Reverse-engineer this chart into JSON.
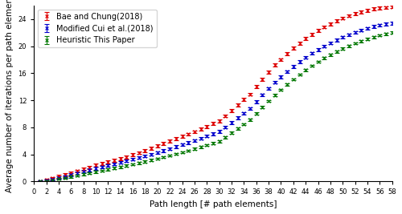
{
  "title": "",
  "xlabel": "Path length [# path elements]",
  "ylabel": "Average number of iterations per path element",
  "xlim": [
    0,
    58
  ],
  "ylim": [
    0,
    26
  ],
  "xticks": [
    0,
    2,
    4,
    6,
    8,
    10,
    12,
    14,
    16,
    18,
    20,
    22,
    24,
    26,
    28,
    30,
    32,
    34,
    36,
    38,
    40,
    42,
    44,
    46,
    48,
    50,
    52,
    54,
    56,
    58
  ],
  "yticks": [
    0,
    4,
    8,
    12,
    16,
    20,
    24
  ],
  "series": [
    {
      "label": "Bae and Chung(2018)",
      "color": "#dd0000",
      "x": [
        1,
        2,
        3,
        4,
        5,
        6,
        7,
        8,
        9,
        10,
        11,
        12,
        13,
        14,
        15,
        16,
        17,
        18,
        19,
        20,
        21,
        22,
        23,
        24,
        25,
        26,
        27,
        28,
        29,
        30,
        31,
        32,
        33,
        34,
        35,
        36,
        37,
        38,
        39,
        40,
        41,
        42,
        43,
        44,
        45,
        46,
        47,
        48,
        49,
        50,
        51,
        52,
        53,
        54,
        55,
        56,
        57,
        58
      ],
      "y": [
        0.05,
        0.25,
        0.5,
        0.75,
        1.0,
        1.25,
        1.55,
        1.85,
        2.1,
        2.4,
        2.65,
        2.9,
        3.15,
        3.4,
        3.65,
        3.95,
        4.25,
        4.55,
        4.9,
        5.25,
        5.6,
        5.95,
        6.3,
        6.65,
        7.0,
        7.35,
        7.75,
        8.15,
        8.55,
        8.95,
        9.7,
        10.5,
        11.3,
        12.1,
        12.9,
        14.0,
        15.1,
        16.2,
        17.2,
        18.0,
        18.9,
        19.7,
        20.4,
        21.1,
        21.7,
        22.3,
        22.85,
        23.3,
        23.75,
        24.15,
        24.5,
        24.8,
        25.05,
        25.3,
        25.5,
        25.6,
        25.7,
        25.8
      ],
      "yerr": [
        0.1,
        0.15,
        0.18,
        0.2,
        0.22,
        0.22,
        0.22,
        0.22,
        0.22,
        0.22,
        0.22,
        0.22,
        0.22,
        0.22,
        0.22,
        0.22,
        0.22,
        0.22,
        0.22,
        0.22,
        0.22,
        0.22,
        0.22,
        0.22,
        0.22,
        0.22,
        0.22,
        0.22,
        0.22,
        0.22,
        0.22,
        0.22,
        0.22,
        0.22,
        0.22,
        0.22,
        0.22,
        0.22,
        0.22,
        0.22,
        0.22,
        0.22,
        0.22,
        0.22,
        0.22,
        0.22,
        0.22,
        0.22,
        0.22,
        0.22,
        0.22,
        0.22,
        0.22,
        0.22,
        0.22,
        0.22,
        0.22,
        0.22
      ]
    },
    {
      "label": "Modified Cui et al.(2018)",
      "color": "#0000cc",
      "x": [
        1,
        2,
        3,
        4,
        5,
        6,
        7,
        8,
        9,
        10,
        11,
        12,
        13,
        14,
        15,
        16,
        17,
        18,
        19,
        20,
        21,
        22,
        23,
        24,
        25,
        26,
        27,
        28,
        29,
        30,
        31,
        32,
        33,
        34,
        35,
        36,
        37,
        38,
        39,
        40,
        41,
        42,
        43,
        44,
        45,
        46,
        47,
        48,
        49,
        50,
        51,
        52,
        53,
        54,
        55,
        56,
        57,
        58
      ],
      "y": [
        0.02,
        0.15,
        0.35,
        0.55,
        0.75,
        1.0,
        1.25,
        1.5,
        1.72,
        1.95,
        2.15,
        2.38,
        2.6,
        2.82,
        3.05,
        3.28,
        3.52,
        3.76,
        4.02,
        4.28,
        4.56,
        4.85,
        5.15,
        5.45,
        5.75,
        6.06,
        6.38,
        6.72,
        7.06,
        7.42,
        8.05,
        8.72,
        9.4,
        10.1,
        10.8,
        11.8,
        12.8,
        13.75,
        14.65,
        15.45,
        16.25,
        17.0,
        17.7,
        18.35,
        18.95,
        19.5,
        20.0,
        20.48,
        20.92,
        21.32,
        21.7,
        22.05,
        22.35,
        22.65,
        22.9,
        23.1,
        23.25,
        23.4
      ],
      "yerr": [
        0.1,
        0.12,
        0.15,
        0.17,
        0.18,
        0.2,
        0.2,
        0.2,
        0.2,
        0.2,
        0.2,
        0.2,
        0.2,
        0.2,
        0.2,
        0.2,
        0.2,
        0.2,
        0.2,
        0.2,
        0.2,
        0.2,
        0.2,
        0.2,
        0.2,
        0.2,
        0.2,
        0.2,
        0.2,
        0.2,
        0.2,
        0.2,
        0.2,
        0.2,
        0.2,
        0.2,
        0.2,
        0.2,
        0.2,
        0.2,
        0.2,
        0.2,
        0.2,
        0.2,
        0.2,
        0.2,
        0.2,
        0.2,
        0.2,
        0.2,
        0.2,
        0.2,
        0.2,
        0.2,
        0.2,
        0.2,
        0.2,
        0.2
      ]
    },
    {
      "label": "Heuristic This Paper",
      "color": "#007700",
      "x": [
        1,
        2,
        3,
        4,
        5,
        6,
        7,
        8,
        9,
        10,
        11,
        12,
        13,
        14,
        15,
        16,
        17,
        18,
        19,
        20,
        21,
        22,
        23,
        24,
        25,
        26,
        27,
        28,
        29,
        30,
        31,
        32,
        33,
        34,
        35,
        36,
        37,
        38,
        39,
        40,
        41,
        42,
        43,
        44,
        45,
        46,
        47,
        48,
        49,
        50,
        51,
        52,
        53,
        54,
        55,
        56,
        57,
        58
      ],
      "y": [
        0.01,
        0.08,
        0.2,
        0.38,
        0.55,
        0.72,
        0.9,
        1.08,
        1.25,
        1.43,
        1.6,
        1.8,
        1.98,
        2.17,
        2.35,
        2.55,
        2.75,
        2.95,
        3.16,
        3.38,
        3.6,
        3.83,
        4.07,
        4.31,
        4.56,
        4.82,
        5.09,
        5.37,
        5.65,
        5.95,
        6.55,
        7.18,
        7.82,
        8.48,
        9.15,
        10.05,
        11.0,
        11.9,
        12.75,
        13.55,
        14.35,
        15.1,
        15.82,
        16.5,
        17.12,
        17.7,
        18.25,
        18.75,
        19.22,
        19.65,
        20.05,
        20.42,
        20.76,
        21.07,
        21.35,
        21.6,
        21.8,
        22.0
      ],
      "yerr": [
        0.05,
        0.08,
        0.1,
        0.12,
        0.14,
        0.15,
        0.16,
        0.16,
        0.16,
        0.16,
        0.16,
        0.16,
        0.16,
        0.16,
        0.16,
        0.16,
        0.16,
        0.16,
        0.16,
        0.16,
        0.16,
        0.16,
        0.16,
        0.16,
        0.16,
        0.16,
        0.16,
        0.16,
        0.16,
        0.16,
        0.16,
        0.16,
        0.16,
        0.16,
        0.16,
        0.16,
        0.16,
        0.16,
        0.16,
        0.16,
        0.16,
        0.16,
        0.16,
        0.16,
        0.16,
        0.16,
        0.16,
        0.16,
        0.16,
        0.16,
        0.16,
        0.16,
        0.16,
        0.16,
        0.16,
        0.16,
        0.16,
        0.16
      ]
    }
  ],
  "legend_loc": "upper left",
  "legend_fontsize": 7,
  "tick_fontsize": 6,
  "label_fontsize": 7.5,
  "marker": "x",
  "markersize": 3,
  "capsize": 2,
  "linewidth": 0.0,
  "elinewidth": 0.8
}
